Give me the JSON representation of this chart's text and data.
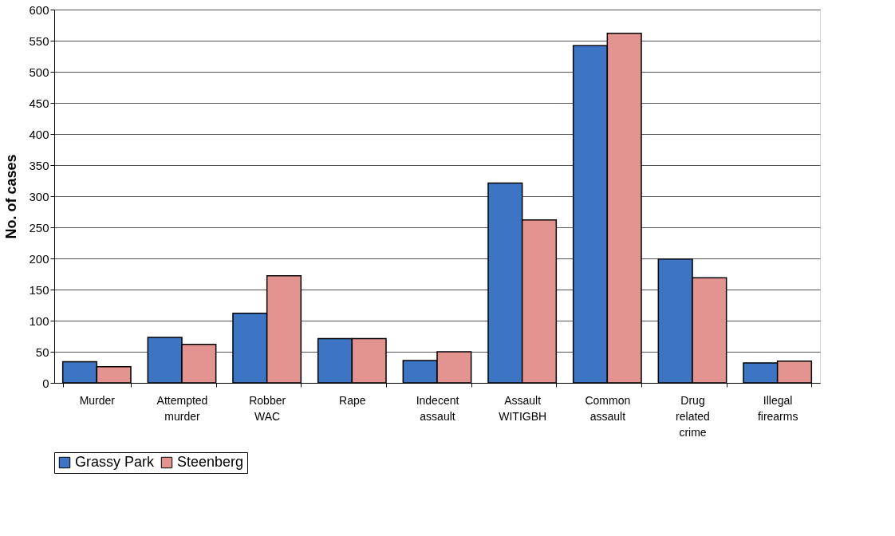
{
  "chart_data": {
    "type": "bar",
    "ylabel": "No. of cases",
    "categories": [
      "Murder",
      "Attempted murder",
      "Robber WAC",
      "Rape",
      "Indecent assault",
      "Assault WITIGBH",
      "Common assault",
      "Drug related crime",
      "Illegal firearms"
    ],
    "series": [
      {
        "name": "Grassy Park",
        "color": "#3d74c4",
        "values": [
          34,
          73,
          112,
          71,
          36,
          321,
          542,
          199,
          32
        ]
      },
      {
        "name": "Steenberg",
        "color": "#e39390",
        "values": [
          26,
          62,
          172,
          71,
          50,
          262,
          562,
          169,
          35
        ]
      }
    ],
    "ylim": [
      0,
      600
    ],
    "yticks": [
      0,
      50,
      100,
      150,
      200,
      250,
      300,
      350,
      400,
      450,
      500,
      550,
      600
    ],
    "grid": "y",
    "legend": "bottom"
  }
}
